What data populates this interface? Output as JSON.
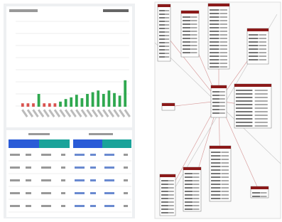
{
  "chart_data": {
    "type": "bar",
    "values": [
      0.4,
      0.4,
      0.4,
      1.5,
      0.4,
      0.4,
      0.4,
      0.6,
      0.9,
      1.1,
      1.4,
      1.0,
      1.5,
      1.7,
      1.9,
      1.5,
      1.9,
      1.6,
      1.3,
      3.1
    ],
    "colors": [
      "#d9534f",
      "#d9534f",
      "#d9534f",
      "#2fa84f",
      "#d9534f",
      "#d9534f",
      "#d9534f",
      "#2fa84f",
      "#2fa84f",
      "#2fa84f",
      "#2fa84f",
      "#2fa84f",
      "#2fa84f",
      "#2fa84f",
      "#2fa84f",
      "#2fa84f",
      "#2fa84f",
      "#2fa84f",
      "#2fa84f",
      "#2fa84f"
    ],
    "ylim": [
      0,
      10
    ]
  }
}
